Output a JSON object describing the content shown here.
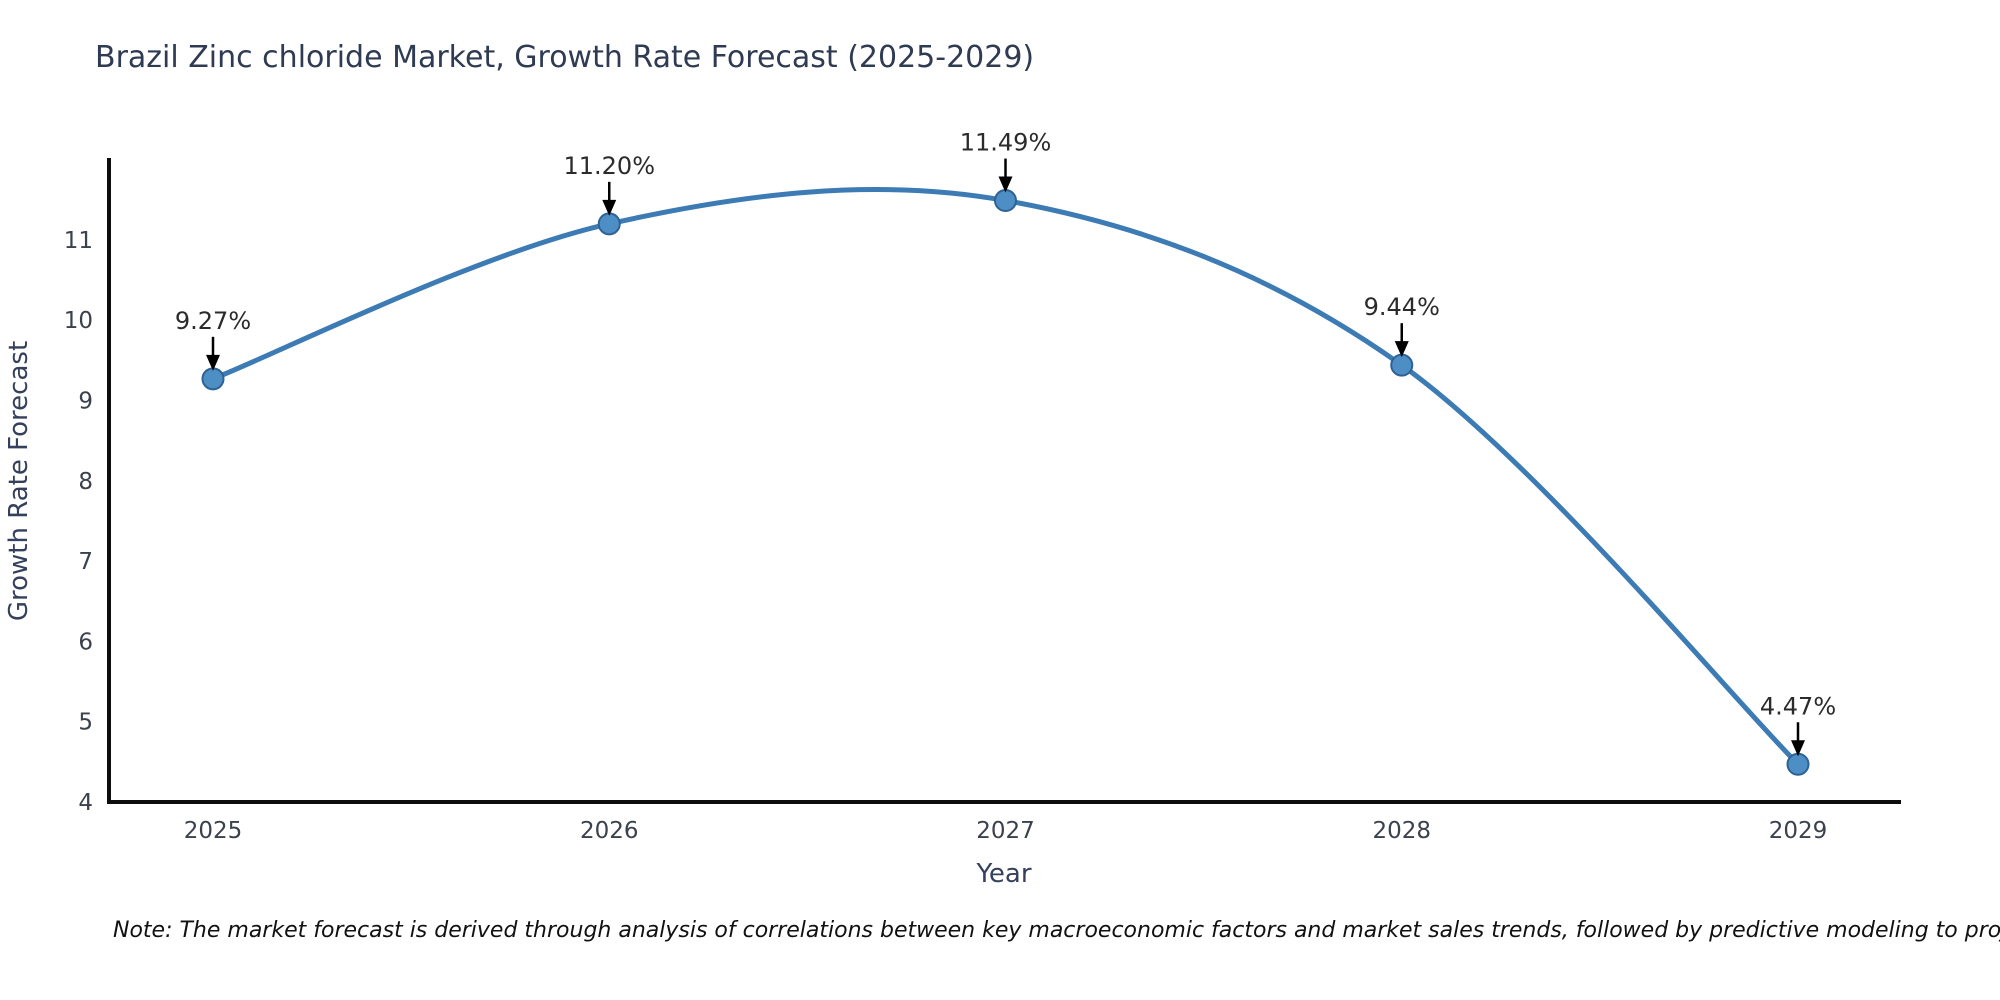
{
  "chart_data": {
    "type": "line",
    "title": "Brazil Zinc chloride Market, Growth Rate Forecast (2025-2029)",
    "xlabel": "Year",
    "ylabel": "Growth Rate Forecast",
    "x": [
      2025,
      2026,
      2027,
      2028,
      2029
    ],
    "values": [
      9.27,
      11.2,
      11.49,
      9.44,
      4.47
    ],
    "annotations": [
      "9.27%",
      "11.20%",
      "11.49%",
      "9.44%",
      "4.47%"
    ],
    "x_tick_labels": [
      "2025",
      "2026",
      "2027",
      "2028",
      "2029"
    ],
    "y_tick_values": [
      4,
      5,
      6,
      7,
      8,
      9,
      10,
      11
    ],
    "ylim": [
      4,
      12
    ],
    "xlim": [
      2024.74,
      2029.26
    ],
    "grid": false,
    "legend": "none",
    "curve": "smooth-spline",
    "line_color": "#3d7bb5",
    "marker_color": "#4d8fc4",
    "marker_edge_color": "#2e6296",
    "axis_color": "#0d0d0d",
    "annotation_arrow_color": "#000000"
  },
  "note": "Note: The market forecast is derived through analysis of correlations between key macroeconomic factors and market sales trends, followed by predictive modeling to project future sales"
}
